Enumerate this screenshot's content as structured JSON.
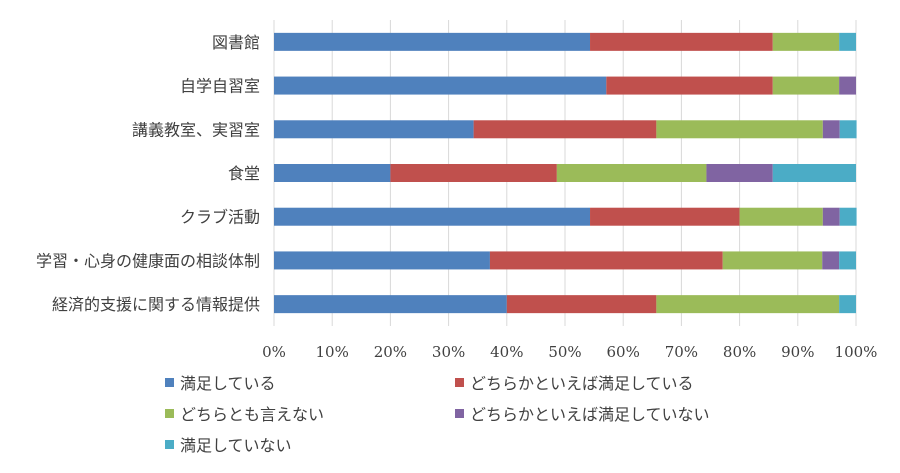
{
  "chart_data": {
    "type": "bar",
    "orientation": "horizontal",
    "stacked": true,
    "normalized": true,
    "categories": [
      "図書館",
      "自学自習室",
      "講義教室、実習室",
      "食堂",
      "クラブ活動",
      "学習・心身の健康面の相談体制",
      "経済的支援に関する情報提供"
    ],
    "series": [
      {
        "name": "満足している",
        "color": "#4f81bd",
        "values": [
          54.3,
          57.1,
          34.3,
          20.0,
          54.3,
          37.1,
          40.0
        ]
      },
      {
        "name": "どちらかといえば満足している",
        "color": "#c0504d",
        "values": [
          31.4,
          28.6,
          31.4,
          28.6,
          25.7,
          40.0,
          25.7
        ]
      },
      {
        "name": "どちらとも言えない",
        "color": "#9bbb59",
        "values": [
          11.4,
          11.4,
          28.6,
          25.7,
          14.3,
          17.1,
          31.4
        ]
      },
      {
        "name": "どちらかといえば満足していない",
        "color": "#8064a2",
        "values": [
          0,
          2.9,
          2.9,
          11.4,
          2.9,
          2.9,
          0
        ]
      },
      {
        "name": "満足していない",
        "color": "#4bacc6",
        "values": [
          2.9,
          0,
          2.9,
          14.3,
          2.9,
          2.9,
          2.9
        ]
      }
    ],
    "xlim": [
      0,
      100
    ],
    "xticks": [
      "0%",
      "10%",
      "20%",
      "30%",
      "40%",
      "50%",
      "60%",
      "70%",
      "80%",
      "90%",
      "100%"
    ],
    "grid": true,
    "legend_position": "bottom"
  }
}
